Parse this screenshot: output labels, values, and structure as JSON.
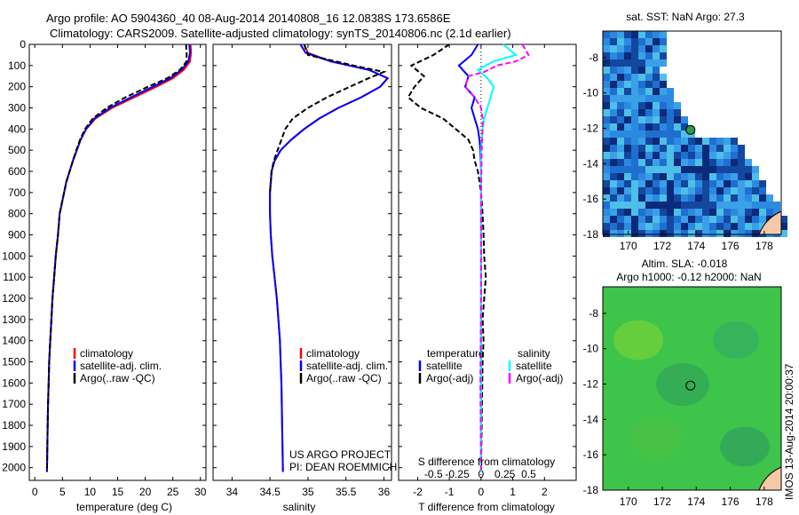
{
  "header": {
    "title_line1": "Argo profile: AO 5904360_40 08-Aug-2014 20140808_16 12.0838S 173.6586E",
    "title_line2": "Climatology: CARS2009. Satellite-adjusted climatology: synTS_20140806.nc (2.1d earlier)"
  },
  "colors": {
    "climatology": "#ff0000",
    "satellite": "#0000ff",
    "argo": "#000000",
    "satellite_s": "#00ffff",
    "argo_s": "#ff00ff",
    "sst_field": "#2a7fd4",
    "sla_field": "#3ec44a",
    "land": "#f5c8a8"
  },
  "panels": {
    "temperature": {
      "xlabel": "temperature (deg C)"
    },
    "salinity": {
      "xlabel": "salinity"
    },
    "difference": {
      "xlabel_top": "S difference from climatology",
      "xlabel_bottom": "T difference from climatology"
    }
  },
  "legend_profile": {
    "climatology": "climatology",
    "satellite": "satellite-adj. clim.",
    "argo": "Argo(..raw -QC)"
  },
  "legend_diff": {
    "temperature": "temperature",
    "salinity": "salinity",
    "satellite": "satellite",
    "argo": "Argo(-adj)"
  },
  "project": {
    "line1": "US ARGO PROJECT",
    "line2": "PI: DEAN ROEMMICH"
  },
  "maps": {
    "sst_title": "sat. SST: NaN Argo: 27.3",
    "sla_title_line1": "Altim. SLA: -0.018",
    "sla_title_line2": "Argo h1000: -0.12 h2000: NaN"
  },
  "imos_stamp": "IMOS 13-Aug-2014 20:00:37",
  "chart_data": [
    {
      "type": "line",
      "panel": "temperature",
      "xlabel": "temperature (deg C)",
      "ylabel": "",
      "xlim": [
        -1,
        31
      ],
      "ylim": [
        2060,
        0
      ],
      "xticks": [
        0,
        5,
        10,
        15,
        20,
        25,
        30
      ],
      "yticks": [
        0,
        100,
        200,
        300,
        400,
        500,
        600,
        700,
        800,
        900,
        1000,
        1100,
        1200,
        1300,
        1400,
        1500,
        1600,
        1700,
        1800,
        1900,
        2000
      ],
      "series": [
        {
          "name": "climatology",
          "color": "#ff0000",
          "x": [
            28.2,
            28.3,
            28.1,
            27.0,
            25.0,
            22.0,
            18.0,
            14.0,
            11.0,
            9.3,
            8.3,
            7.6,
            6.9,
            6.3,
            5.7,
            5.3,
            4.9,
            4.5,
            4.2,
            3.8,
            3.5,
            3.2,
            3.0,
            2.8,
            2.6,
            2.5,
            2.4,
            2.3,
            2.2
          ],
          "y": [
            0,
            40,
            80,
            120,
            160,
            200,
            250,
            300,
            350,
            400,
            450,
            500,
            550,
            600,
            650,
            700,
            750,
            800,
            900,
            1000,
            1100,
            1200,
            1300,
            1400,
            1500,
            1600,
            1700,
            1850,
            2020
          ]
        },
        {
          "name": "satellite-adj. clim.",
          "color": "#0000ff",
          "x": [
            28.0,
            28.1,
            27.8,
            26.6,
            24.5,
            21.4,
            17.4,
            13.6,
            10.8,
            9.3,
            8.3,
            7.6,
            6.9,
            6.3,
            5.7,
            5.3,
            4.9,
            4.5,
            4.2,
            3.8,
            3.5,
            3.2,
            3.0,
            2.8,
            2.6,
            2.5,
            2.4,
            2.3,
            2.2
          ],
          "y": [
            0,
            40,
            80,
            120,
            160,
            200,
            250,
            300,
            350,
            400,
            450,
            500,
            550,
            600,
            650,
            700,
            750,
            800,
            900,
            1000,
            1100,
            1200,
            1300,
            1400,
            1500,
            1600,
            1700,
            1850,
            2020
          ]
        },
        {
          "name": "Argo(..raw -QC)",
          "color": "#000000",
          "dashed": true,
          "x": [
            27.4,
            27.5,
            27.5,
            26.3,
            24.0,
            20.5,
            16.4,
            13.0,
            10.5,
            9.1,
            8.2,
            7.5,
            6.9,
            6.3,
            5.7,
            5.3,
            4.9,
            4.5,
            4.2,
            3.8,
            3.5,
            3.2,
            3.0,
            2.8,
            2.6,
            2.5,
            2.4,
            2.3,
            2.2
          ],
          "y": [
            0,
            40,
            80,
            120,
            160,
            200,
            250,
            300,
            350,
            400,
            450,
            500,
            550,
            600,
            650,
            700,
            750,
            800,
            900,
            1000,
            1100,
            1200,
            1300,
            1400,
            1500,
            1600,
            1700,
            1850,
            2020
          ]
        }
      ]
    },
    {
      "type": "line",
      "panel": "salinity",
      "xlabel": "salinity",
      "ylabel": "",
      "xlim": [
        33.75,
        36.1
      ],
      "ylim": [
        2060,
        0
      ],
      "xticks": [
        34,
        34.5,
        35,
        35.5,
        36
      ],
      "series": [
        {
          "name": "climatology",
          "color": "#ff0000",
          "x": [
            34.95,
            35.0,
            35.3,
            35.8,
            36.05,
            35.95,
            35.7,
            35.4,
            35.15,
            34.95,
            34.78,
            34.64,
            34.56,
            34.52,
            34.5,
            34.5,
            34.51,
            34.53,
            34.56,
            34.59,
            34.61,
            34.63,
            34.64,
            34.65,
            34.66,
            34.67
          ],
          "y": [
            0,
            40,
            80,
            120,
            160,
            200,
            250,
            300,
            350,
            400,
            450,
            500,
            550,
            600,
            700,
            800,
            900,
            1000,
            1100,
            1200,
            1300,
            1400,
            1500,
            1600,
            1800,
            2020
          ]
        },
        {
          "name": "satellite-adj. clim.",
          "color": "#0000ff",
          "x": [
            34.9,
            34.97,
            35.3,
            35.8,
            36.05,
            35.95,
            35.7,
            35.4,
            35.15,
            34.95,
            34.78,
            34.64,
            34.56,
            34.52,
            34.5,
            34.5,
            34.51,
            34.53,
            34.56,
            34.59,
            34.61,
            34.63,
            34.64,
            34.65,
            34.66,
            34.67
          ],
          "y": [
            0,
            40,
            80,
            120,
            160,
            200,
            250,
            300,
            350,
            400,
            450,
            500,
            550,
            600,
            700,
            800,
            900,
            1000,
            1100,
            1200,
            1300,
            1400,
            1500,
            1600,
            1800,
            2020
          ]
        },
        {
          "name": "Argo(..raw -QC)",
          "color": "#000000",
          "dashed": true,
          "x": [
            34.95,
            35.0,
            35.6,
            36.0,
            35.8,
            35.55,
            35.25,
            35.0,
            34.8,
            34.7,
            34.65,
            34.6,
            34.55,
            34.52,
            34.5
          ],
          "y": [
            0,
            50,
            100,
            130,
            160,
            200,
            250,
            300,
            350,
            400,
            450,
            500,
            550,
            600,
            700
          ]
        }
      ]
    },
    {
      "type": "line",
      "panel": "difference",
      "xlabel": "T difference from climatology",
      "xlabel_top": "S difference from climatology",
      "xlim": [
        -2.6,
        3.0
      ],
      "ylim": [
        2060,
        0
      ],
      "xticks": [
        -2,
        -1,
        0,
        1,
        2
      ],
      "xticks_top": [
        -0.5,
        -0.25,
        0,
        0.25,
        0.5
      ],
      "series": [
        {
          "name": "temperature satellite",
          "color": "#0000ff",
          "x": [
            -0.1,
            -0.3,
            -0.7,
            -0.4,
            -0.5,
            -0.2,
            -0.3,
            -0.2,
            -0.1,
            -0.05,
            -0.02,
            0.0,
            0.0,
            0.0,
            0.0,
            0.0,
            0.0,
            0.0,
            0.0
          ],
          "y": [
            0,
            50,
            100,
            150,
            200,
            250,
            300,
            350,
            400,
            450,
            500,
            600,
            700,
            800,
            900,
            1000,
            1200,
            1500,
            2020
          ]
        },
        {
          "name": "temperature Argo(-adj)",
          "color": "#000000",
          "dashed": true,
          "x": [
            -1.0,
            -1.5,
            -2.2,
            -1.8,
            -2.1,
            -2.3,
            -1.9,
            -1.2,
            -0.8,
            -0.4,
            -0.25,
            -0.2,
            -0.1,
            0.0,
            0.05,
            0.08,
            0.1,
            0.15,
            0.1,
            0.05,
            0.08,
            0.05,
            0.03,
            0.0
          ],
          "y": [
            0,
            50,
            100,
            150,
            200,
            250,
            300,
            350,
            400,
            450,
            500,
            550,
            600,
            700,
            800,
            900,
            1000,
            1100,
            1200,
            1300,
            1400,
            1500,
            1700,
            2020
          ]
        },
        {
          "name": "salinity satellite",
          "color": "#00ffff",
          "x": [
            0.7,
            1.1,
            0.4,
            -0.1,
            0.2,
            0.4,
            0.3,
            0.2,
            0.1,
            0.05,
            0.0,
            0.0,
            0.0,
            0.0,
            0.0,
            0.0
          ],
          "y": [
            0,
            50,
            80,
            120,
            160,
            200,
            250,
            300,
            350,
            400,
            500,
            700,
            900,
            1200,
            1600,
            2020
          ]
        },
        {
          "name": "salinity Argo(-adj)",
          "color": "#ff00ff",
          "dashed": true,
          "x": [
            1.3,
            1.5,
            1.1,
            0.5,
            0.1,
            -0.4,
            -0.5,
            -0.2,
            0.0,
            0.05,
            0.05,
            0.02,
            0.0,
            0.0,
            0.0,
            -0.02,
            0.0
          ],
          "y": [
            0,
            50,
            80,
            100,
            130,
            150,
            200,
            250,
            300,
            350,
            400,
            500,
            700,
            900,
            1200,
            1600,
            2020
          ]
        }
      ]
    },
    {
      "type": "heatmap",
      "panel": "sst_map",
      "title": "sat. SST: NaN Argo: 27.3",
      "xlim": [
        168.5,
        179
      ],
      "ylim": [
        -18,
        -6.5
      ],
      "xticks": [
        170,
        172,
        174,
        176,
        178
      ],
      "yticks": [
        -8,
        -10,
        -12,
        -14,
        -16,
        -18
      ],
      "marker": {
        "lon": 173.6586,
        "lat": -12.0838
      }
    },
    {
      "type": "heatmap",
      "panel": "sla_map",
      "title": "Altim. SLA: -0.018",
      "subtitle": "Argo h1000: -0.12 h2000: NaN",
      "xlim": [
        168.5,
        179
      ],
      "ylim": [
        -18,
        -6.5
      ],
      "xticks": [
        170,
        172,
        174,
        176,
        178
      ],
      "yticks": [
        -8,
        -10,
        -12,
        -14,
        -16,
        -18
      ],
      "marker": {
        "lon": 173.6586,
        "lat": -12.0838
      }
    }
  ]
}
